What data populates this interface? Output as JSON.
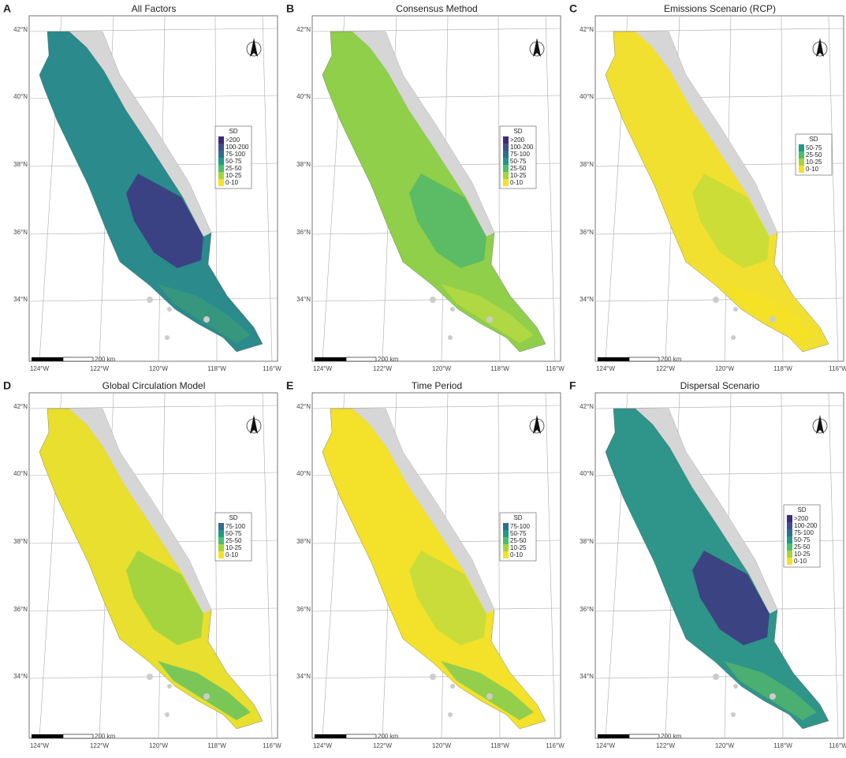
{
  "panels": [
    {
      "letter": "A",
      "title": "All Factors",
      "legend": {
        "title": "SD",
        "items": [
          {
            "label": ">200",
            "color": "#3d2b79"
          },
          {
            "label": "100-200",
            "color": "#3e4f8d"
          },
          {
            "label": "75-100",
            "color": "#2e6e8e"
          },
          {
            "label": "50-75",
            "color": "#1f9a89"
          },
          {
            "label": "25-50",
            "color": "#4cbf6b"
          },
          {
            "label": "10-25",
            "color": "#a5d53c"
          },
          {
            "label": "0-10",
            "color": "#f5e226"
          }
        ]
      }
    },
    {
      "letter": "B",
      "title": "Consensus Method",
      "legend": {
        "title": "SD",
        "items": [
          {
            "label": ">200",
            "color": "#3d2b79"
          },
          {
            "label": "100-200",
            "color": "#3e4f8d"
          },
          {
            "label": "75-100",
            "color": "#2e6e8e"
          },
          {
            "label": "50-75",
            "color": "#1f9a89"
          },
          {
            "label": "25-50",
            "color": "#4cbf6b"
          },
          {
            "label": "10-25",
            "color": "#a5d53c"
          },
          {
            "label": "0-10",
            "color": "#f5e226"
          }
        ]
      }
    },
    {
      "letter": "C",
      "title": "Emissions Scenario (RCP)",
      "legend": {
        "title": "SD",
        "items": [
          {
            "label": "50-75",
            "color": "#1f9a89"
          },
          {
            "label": "25-50",
            "color": "#4cbf6b"
          },
          {
            "label": "10-25",
            "color": "#a5d53c"
          },
          {
            "label": "0-10",
            "color": "#f5e226"
          }
        ]
      }
    },
    {
      "letter": "D",
      "title": "Global Circulation Model",
      "legend": {
        "title": "SD",
        "items": [
          {
            "label": "75-100",
            "color": "#2e6e8e"
          },
          {
            "label": "50-75",
            "color": "#1f9a89"
          },
          {
            "label": "25-50",
            "color": "#4cbf6b"
          },
          {
            "label": "10-25",
            "color": "#a5d53c"
          },
          {
            "label": "0-10",
            "color": "#f5e226"
          }
        ]
      }
    },
    {
      "letter": "E",
      "title": "Time Period",
      "legend": {
        "title": "SD",
        "items": [
          {
            "label": "75-100",
            "color": "#2e6e8e"
          },
          {
            "label": "50-75",
            "color": "#1f9a89"
          },
          {
            "label": "25-50",
            "color": "#4cbf6b"
          },
          {
            "label": "10-25",
            "color": "#a5d53c"
          },
          {
            "label": "0-10",
            "color": "#f5e226"
          }
        ]
      }
    },
    {
      "letter": "F",
      "title": "Dispersal Scenario",
      "legend": {
        "title": "SD",
        "items": [
          {
            "label": ">200",
            "color": "#3d2b79"
          },
          {
            "label": "100-200",
            "color": "#3e4f8d"
          },
          {
            "label": "75-100",
            "color": "#2e6e8e"
          },
          {
            "label": "50-75",
            "color": "#1f9a89"
          },
          {
            "label": "25-50",
            "color": "#4cbf6b"
          },
          {
            "label": "10-25",
            "color": "#a5d53c"
          },
          {
            "label": "0-10",
            "color": "#f5e226"
          }
        ]
      }
    }
  ],
  "lat_labels": [
    "42°N",
    "40°N",
    "38°N",
    "36°N",
    "34°N"
  ],
  "lon_labels": [
    "124°W",
    "122°W",
    "120°W",
    "118°W",
    "116°W"
  ],
  "scale_label": "200 km"
}
